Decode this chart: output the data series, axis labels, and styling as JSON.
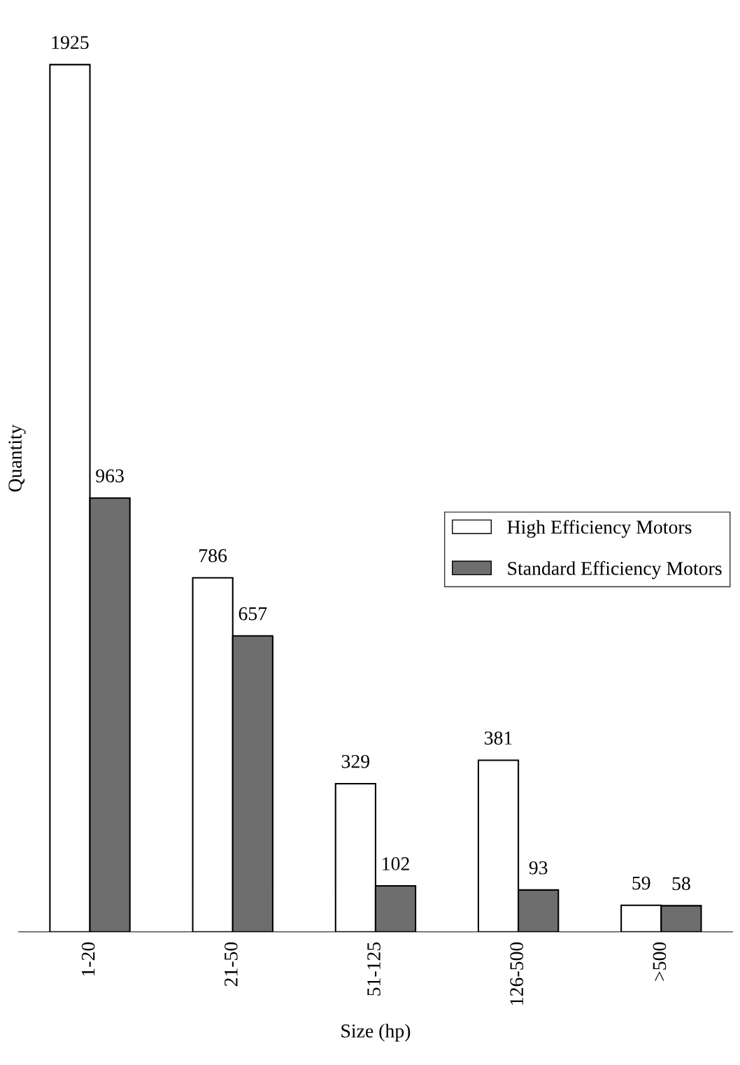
{
  "chart_data": {
    "type": "bar",
    "xlabel": "Size (hp)",
    "ylabel": "Quantity",
    "categories": [
      "1-20",
      "21-50",
      "51-125",
      "126-500",
      ">500"
    ],
    "series": [
      {
        "name": "High Efficiency Motors",
        "color": "#ffffff",
        "values": [
          1925,
          786,
          329,
          381,
          59
        ]
      },
      {
        "name": "Standard Efficiency Motors",
        "color": "#6e6e6e",
        "values": [
          963,
          657,
          102,
          93,
          58
        ]
      }
    ],
    "data_labels": true,
    "legend": "right",
    "grid": false
  }
}
